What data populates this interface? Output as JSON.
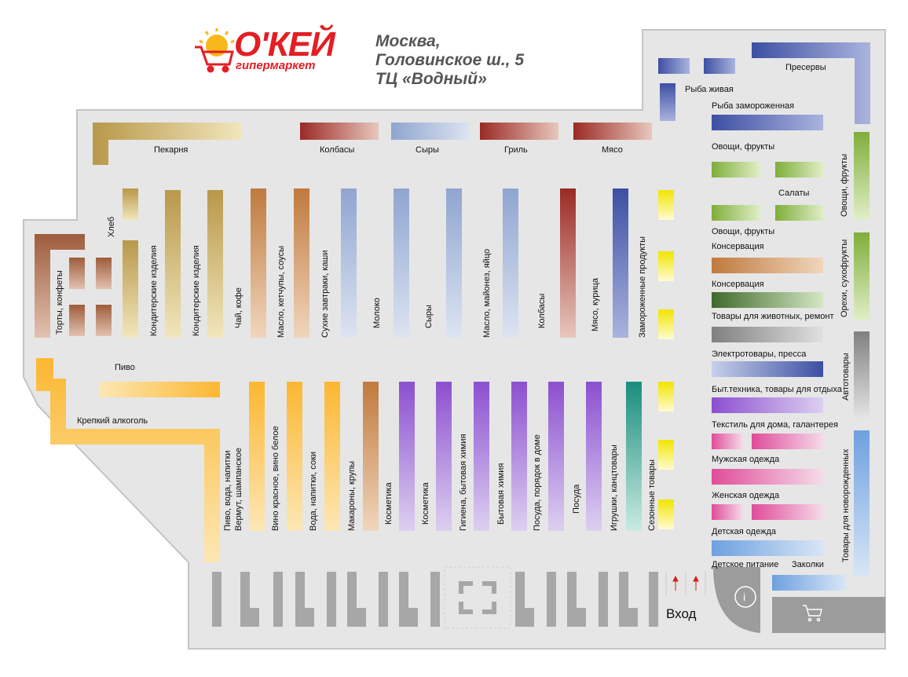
{
  "header": {
    "brand": "О'КЕЙ",
    "brand_sub": "гипермаркет",
    "address_line1": "Москва,",
    "address_line2": "Головинское ш., 5",
    "address_line3": "ТЦ «Водный»"
  },
  "labels": {
    "bakery": "Пекарня",
    "sausages_top": "Колбасы",
    "cheese_top": "Сыры",
    "grill": "Гриль",
    "meat_top": "Мясо",
    "live_fish": "Рыба живая",
    "preserves": "Пресервы",
    "frozen_fish": "Рыба замороженная",
    "veg_fruit_1": "Овощи, фрукты",
    "salads": "Салаты",
    "veg_fruit_2": "Овощи, фрукты",
    "canned_1": "Консервация",
    "canned_2": "Консервация",
    "pets_repair": "Товары для животных, ремонт",
    "electro_press": "Электротовары, пресса",
    "appliances_leisure": "Быт.техника, товары для отдыха",
    "textile": "Текстиль для дома, галантерея",
    "mens": "Мужская одежда",
    "womens": "Женская одежда",
    "kids": "Детская одежда",
    "baby_food": "Детское питание",
    "hairpins": "Заколки",
    "beer": "Пиво",
    "strong_alcohol": "Крепкий алкоголь",
    "entrance": "Вход",
    "info": "i",
    "v_cakes": "Торты, конфеты",
    "v_bread": "Хлеб",
    "v_confect_1": "Кондитерские изделия",
    "v_confect_2": "Кондитерские изделия",
    "v_tea": "Чай, кофе",
    "v_oil": "Масло, кетчупы, соусы",
    "v_cereal": "Сухие завтраки, каши",
    "v_milk": "Молоко",
    "v_cheese": "Сыры",
    "v_mayo": "Масло, майонез, яйцо",
    "v_sausage": "Колбасы",
    "v_meat": "Мясо, курица",
    "v_frozen": "Замороженные продукты",
    "v_veg_right": "Овощи, фрукты",
    "v_nuts": "Орехи, сухофрукты",
    "v_auto": "Автотовары",
    "v_newborn": "Товары для новорожденных",
    "v_beer_water": "Пиво, вода, напитки",
    "v_vermouth": "Вермут, шампанское",
    "v_wine": "Вино красное, вино белое",
    "v_water": "Вода, напитки, соки",
    "v_pasta": "Макароны, крупы",
    "v_cosm_1": "Косметика",
    "v_cosm_2": "Косметика",
    "v_hygiene": "Гигиена, бытовая химия",
    "v_chem": "Бытовая химия",
    "v_dishes_home": "Посуда, порядок в доме",
    "v_dishes": "Посуда",
    "v_toys": "Игрушки, канцтовары",
    "v_season": "Сезонные товары"
  },
  "colors": {
    "floor": "#e6e6e6",
    "floor_border": "#bdbdbd",
    "bakery": "#b8984a",
    "meat_red": "#9b2a25",
    "cheese_blue": "#9fb3d6",
    "dark_blue": "#3d4fa3",
    "green": "#7fae3a",
    "brown_orange": "#c07a3e",
    "yellow": "#f2e500",
    "orange": "#fbb731",
    "purple": "#8c4fd0",
    "pink": "#e04c9a",
    "teal": "#1a8d7c",
    "gray": "#808080",
    "brand_red": "#e31e24"
  }
}
